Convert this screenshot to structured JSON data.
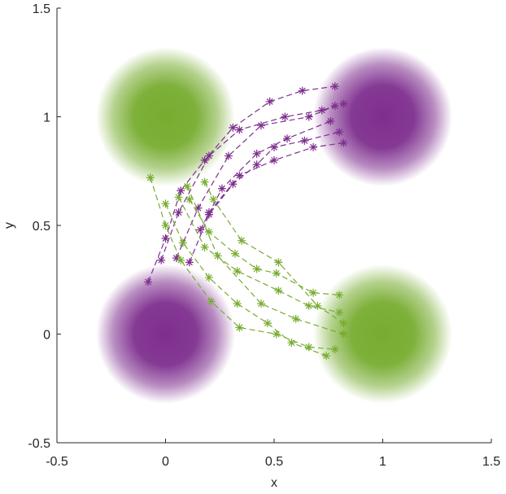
{
  "chart_data": {
    "type": "scatter",
    "xlabel": "x",
    "ylabel": "y",
    "xlim": [
      -0.5,
      1.5
    ],
    "ylim": [
      -0.5,
      1.5
    ],
    "xticks": [
      -0.5,
      0,
      0.5,
      1,
      1.5
    ],
    "yticks": [
      -0.5,
      0,
      0.5,
      1,
      1.5
    ],
    "clusters": [
      {
        "color": "#77ac30",
        "x": 0,
        "y": 1,
        "std": 0.1
      },
      {
        "color": "#7e2f8e",
        "x": 1,
        "y": 1,
        "std": 0.1
      },
      {
        "color": "#7e2f8e",
        "x": 0,
        "y": 0,
        "std": 0.1
      },
      {
        "color": "#77ac30",
        "x": 1,
        "y": 0,
        "std": 0.1
      }
    ],
    "series": [
      {
        "color": "#7e2f8e",
        "x": [
          -0.08,
          0.0,
          0.07,
          0.18,
          0.31,
          0.48,
          0.63,
          0.78
        ],
        "y": [
          0.24,
          0.44,
          0.66,
          0.8,
          0.95,
          1.07,
          1.12,
          1.14
        ]
      },
      {
        "color": "#7e2f8e",
        "x": [
          -0.02,
          0.06,
          0.2,
          0.34,
          0.55,
          0.72,
          0.82
        ],
        "y": [
          0.34,
          0.56,
          0.82,
          0.94,
          1.0,
          1.03,
          1.06
        ]
      },
      {
        "color": "#7e2f8e",
        "x": [
          0.05,
          0.15,
          0.29,
          0.44,
          0.66,
          0.78
        ],
        "y": [
          0.35,
          0.58,
          0.82,
          0.96,
          1.0,
          1.05
        ]
      },
      {
        "color": "#7e2f8e",
        "x": [
          0.11,
          0.2,
          0.31,
          0.42,
          0.5,
          0.64,
          0.8
        ],
        "y": [
          0.33,
          0.55,
          0.69,
          0.78,
          0.86,
          0.89,
          0.93
        ]
      },
      {
        "color": "#7e2f8e",
        "x": [
          0.16,
          0.26,
          0.42,
          0.56,
          0.76
        ],
        "y": [
          0.48,
          0.67,
          0.83,
          0.9,
          0.98
        ]
      },
      {
        "color": "#7e2f8e",
        "x": [
          0.2,
          0.34,
          0.5,
          0.68,
          0.82
        ],
        "y": [
          0.56,
          0.73,
          0.8,
          0.86,
          0.88
        ]
      },
      {
        "color": "#77ac30",
        "x": [
          -0.07,
          0.0,
          0.07,
          0.21,
          0.34,
          0.51,
          0.66,
          0.78
        ],
        "y": [
          0.72,
          0.5,
          0.34,
          0.15,
          0.03,
          0.0,
          -0.06,
          -0.07
        ]
      },
      {
        "color": "#77ac30",
        "x": [
          0.0,
          0.08,
          0.2,
          0.33,
          0.47,
          0.58,
          0.74
        ],
        "y": [
          0.6,
          0.42,
          0.26,
          0.14,
          0.05,
          -0.04,
          -0.1
        ]
      },
      {
        "color": "#77ac30",
        "x": [
          0.06,
          0.18,
          0.33,
          0.52,
          0.66,
          0.8
        ],
        "y": [
          0.63,
          0.4,
          0.29,
          0.2,
          0.13,
          0.1
        ]
      },
      {
        "color": "#77ac30",
        "x": [
          0.11,
          0.2,
          0.32,
          0.42,
          0.51,
          0.68,
          0.8
        ],
        "y": [
          0.62,
          0.47,
          0.37,
          0.3,
          0.28,
          0.19,
          0.18
        ]
      },
      {
        "color": "#77ac30",
        "x": [
          0.18,
          0.22,
          0.35,
          0.52,
          0.7,
          0.82
        ],
        "y": [
          0.7,
          0.62,
          0.43,
          0.33,
          0.13,
          0.05
        ]
      },
      {
        "color": "#77ac30",
        "x": [
          0.1,
          0.24,
          0.44,
          0.6,
          0.82
        ],
        "y": [
          0.68,
          0.36,
          0.14,
          0.07,
          0.0
        ]
      }
    ]
  }
}
